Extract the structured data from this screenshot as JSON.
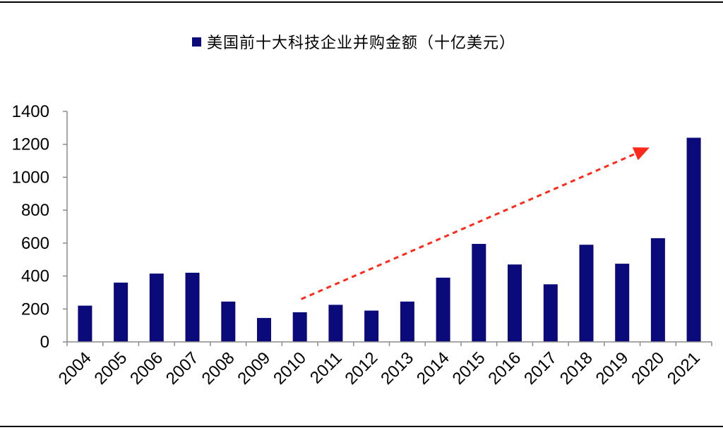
{
  "chart_data": {
    "type": "bar",
    "title": "",
    "xlabel": "",
    "ylabel": "",
    "ylim": [
      0,
      1400
    ],
    "yticks": [
      0,
      200,
      400,
      600,
      800,
      1000,
      1200,
      1400
    ],
    "grid": false,
    "legend_position": "top",
    "categories": [
      "2004",
      "2005",
      "2006",
      "2007",
      "2008",
      "2009",
      "2010",
      "2011",
      "2012",
      "2013",
      "2014",
      "2015",
      "2016",
      "2017",
      "2018",
      "2019",
      "2020",
      "2021"
    ],
    "series": [
      {
        "name": "美国前十大科技企业并购金额（十亿美元）",
        "color": "#0a0a7a",
        "values": [
          220,
          360,
          415,
          420,
          245,
          145,
          180,
          225,
          190,
          245,
          390,
          595,
          470,
          350,
          590,
          475,
          630,
          1240
        ]
      }
    ],
    "annotations": [
      {
        "type": "trend-arrow",
        "style": "dashed",
        "color": "#ff2a1a",
        "from": {
          "x": "2010",
          "y": 260
        },
        "to": {
          "x": "2020",
          "y": 1180
        }
      }
    ]
  }
}
